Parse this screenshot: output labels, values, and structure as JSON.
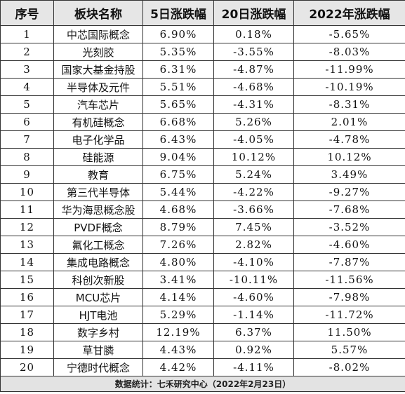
{
  "headers": [
    "序号",
    "板块名称",
    "5日涨跌幅",
    "20日涨跌幅",
    "2022年涨跌幅"
  ],
  "rows": [
    {
      "idx": "1",
      "name": "中芯国际概念",
      "d5": "6.90%",
      "d20": "0.18%",
      "ytd": "-5.65%"
    },
    {
      "idx": "2",
      "name": "光刻胶",
      "d5": "5.35%",
      "d20": "-3.55%",
      "ytd": "-8.03%"
    },
    {
      "idx": "3",
      "name": "国家大基金持股",
      "d5": "6.31%",
      "d20": "-4.87%",
      "ytd": "-11.99%"
    },
    {
      "idx": "4",
      "name": "半导体及元件",
      "d5": "5.51%",
      "d20": "-4.68%",
      "ytd": "-10.19%"
    },
    {
      "idx": "5",
      "name": "汽车芯片",
      "d5": "5.65%",
      "d20": "-4.31%",
      "ytd": "-8.31%"
    },
    {
      "idx": "6",
      "name": "有机硅概念",
      "d5": "6.68%",
      "d20": "5.26%",
      "ytd": "2.01%"
    },
    {
      "idx": "7",
      "name": "电子化学品",
      "d5": "6.43%",
      "d20": "-4.05%",
      "ytd": "-4.78%"
    },
    {
      "idx": "8",
      "name": "硅能源",
      "d5": "9.04%",
      "d20": "10.12%",
      "ytd": "10.12%"
    },
    {
      "idx": "9",
      "name": "教育",
      "d5": "6.75%",
      "d20": "5.24%",
      "ytd": "3.49%"
    },
    {
      "idx": "10",
      "name": "第三代半导体",
      "d5": "5.44%",
      "d20": "-4.22%",
      "ytd": "-9.27%"
    },
    {
      "idx": "11",
      "name": "华为海思概念股",
      "d5": "4.68%",
      "d20": "-3.66%",
      "ytd": "-7.68%"
    },
    {
      "idx": "12",
      "name": "PVDF概念",
      "d5": "8.79%",
      "d20": "7.45%",
      "ytd": "-3.52%"
    },
    {
      "idx": "13",
      "name": "氟化工概念",
      "d5": "7.26%",
      "d20": "2.82%",
      "ytd": "-4.60%"
    },
    {
      "idx": "14",
      "name": "集成电路概念",
      "d5": "4.80%",
      "d20": "-4.10%",
      "ytd": "-7.87%"
    },
    {
      "idx": "15",
      "name": "科创次新股",
      "d5": "3.41%",
      "d20": "-10.11%",
      "ytd": "-11.56%"
    },
    {
      "idx": "16",
      "name": "MCU芯片",
      "d5": "4.14%",
      "d20": "-4.60%",
      "ytd": "-7.98%"
    },
    {
      "idx": "17",
      "name": "HJT电池",
      "d5": "5.29%",
      "d20": "-1.14%",
      "ytd": "-11.72%"
    },
    {
      "idx": "18",
      "name": "数字乡村",
      "d5": "12.19%",
      "d20": "6.37%",
      "ytd": "11.50%"
    },
    {
      "idx": "19",
      "name": "草甘膦",
      "d5": "4.43%",
      "d20": "0.92%",
      "ytd": "5.57%"
    },
    {
      "idx": "20",
      "name": "宁德时代概念",
      "d5": "4.42%",
      "d20": "-4.11%",
      "ytd": "-8.02%"
    }
  ],
  "footer": "数据统计：七禾研究中心（2022年2月23日）",
  "colors": {
    "header_bg": "#e6e6e6",
    "footer_bg": "#e3e3e3",
    "border": "#333333"
  }
}
